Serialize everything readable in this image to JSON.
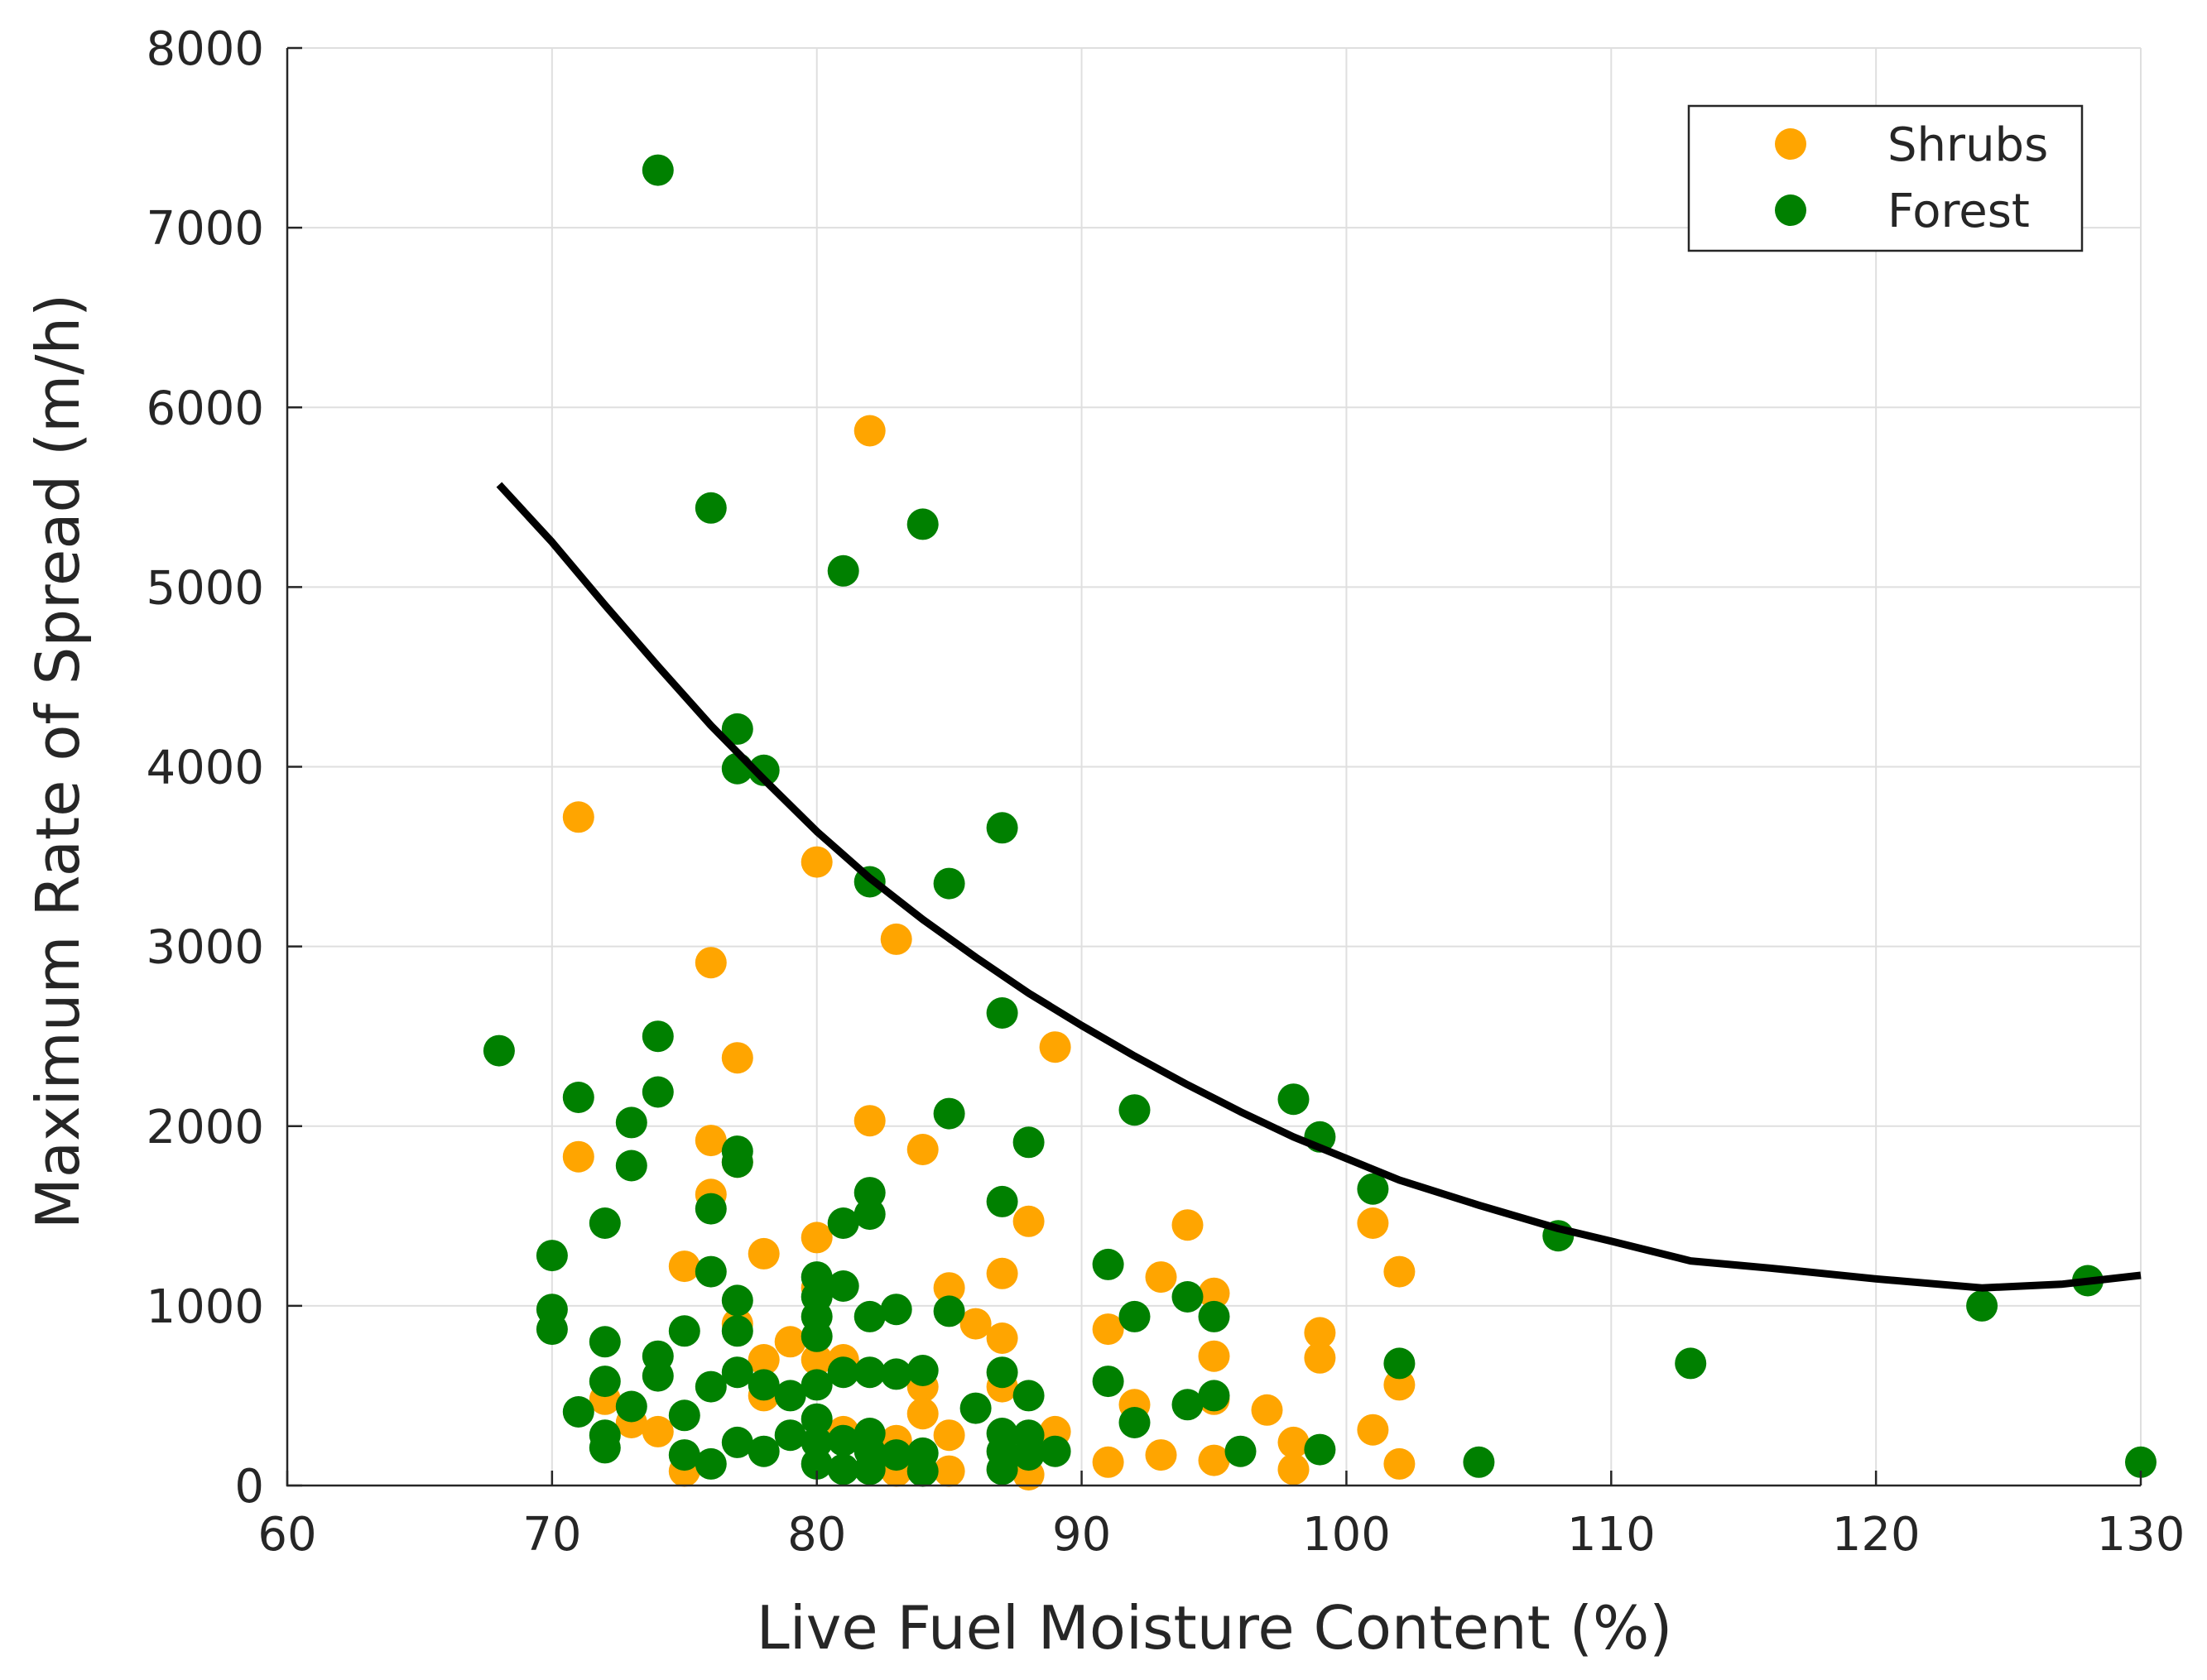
{
  "chart_data": {
    "type": "scatter",
    "title": "",
    "xlabel": "Live Fuel Moisture Content (%)",
    "ylabel": "Maximum Rate of Spread (m/h)",
    "xlim": [
      60,
      130
    ],
    "ylim": [
      0,
      8000
    ],
    "xticks": [
      60,
      70,
      80,
      90,
      100,
      110,
      120,
      130
    ],
    "yticks": [
      0,
      1000,
      2000,
      3000,
      4000,
      5000,
      6000,
      7000,
      8000
    ],
    "xtick_labels": [
      "60",
      "70",
      "80",
      "90",
      "100",
      "110",
      "120",
      "130"
    ],
    "ytick_labels": [
      "0",
      "1000",
      "2000",
      "3000",
      "4000",
      "5000",
      "6000",
      "7000",
      "8000"
    ],
    "grid": true,
    "legend_position": "top-right",
    "series": [
      {
        "name": "Shrubs",
        "color": "#FFA500",
        "points": [
          [
            71,
            3720
          ],
          [
            71,
            1830
          ],
          [
            72,
            480
          ],
          [
            73,
            350
          ],
          [
            74,
            300
          ],
          [
            75,
            1220
          ],
          [
            75,
            80
          ],
          [
            76,
            2910
          ],
          [
            76,
            1920
          ],
          [
            76,
            1620
          ],
          [
            77,
            2380
          ],
          [
            77,
            1800
          ],
          [
            77,
            900
          ],
          [
            78,
            1290
          ],
          [
            78,
            700
          ],
          [
            78,
            500
          ],
          [
            79,
            800
          ],
          [
            80,
            3470
          ],
          [
            80,
            1380
          ],
          [
            80,
            1100
          ],
          [
            80,
            700
          ],
          [
            81,
            700
          ],
          [
            81,
            300
          ],
          [
            82,
            5870
          ],
          [
            82,
            2030
          ],
          [
            82,
            200
          ],
          [
            83,
            3040
          ],
          [
            83,
            250
          ],
          [
            83,
            80
          ],
          [
            84,
            1870
          ],
          [
            84,
            550
          ],
          [
            84,
            400
          ],
          [
            85,
            1100
          ],
          [
            85,
            280
          ],
          [
            85,
            80
          ],
          [
            86,
            900
          ],
          [
            87,
            1180
          ],
          [
            87,
            820
          ],
          [
            87,
            550
          ],
          [
            88,
            1470
          ],
          [
            88,
            60
          ],
          [
            89,
            2440
          ],
          [
            89,
            300
          ],
          [
            91,
            870
          ],
          [
            91,
            130
          ],
          [
            92,
            450
          ],
          [
            93,
            1160
          ],
          [
            93,
            170
          ],
          [
            94,
            1450
          ],
          [
            95,
            1070
          ],
          [
            95,
            720
          ],
          [
            95,
            480
          ],
          [
            95,
            140
          ],
          [
            97,
            420
          ],
          [
            98,
            240
          ],
          [
            98,
            90
          ],
          [
            99,
            850
          ],
          [
            99,
            710
          ],
          [
            101,
            1460
          ],
          [
            101,
            310
          ],
          [
            102,
            1190
          ],
          [
            102,
            560
          ],
          [
            102,
            120
          ]
        ]
      },
      {
        "name": "Forest",
        "color": "#008000",
        "points": [
          [
            68,
            2420
          ],
          [
            70,
            1280
          ],
          [
            70,
            980
          ],
          [
            70,
            870
          ],
          [
            71,
            2160
          ],
          [
            71,
            410
          ],
          [
            72,
            1460
          ],
          [
            72,
            800
          ],
          [
            72,
            580
          ],
          [
            72,
            280
          ],
          [
            72,
            210
          ],
          [
            73,
            2020
          ],
          [
            73,
            1780
          ],
          [
            73,
            440
          ],
          [
            74,
            7320
          ],
          [
            74,
            2500
          ],
          [
            74,
            2190
          ],
          [
            74,
            720
          ],
          [
            74,
            610
          ],
          [
            75,
            860
          ],
          [
            75,
            390
          ],
          [
            75,
            170
          ],
          [
            76,
            5440
          ],
          [
            76,
            1540
          ],
          [
            76,
            1190
          ],
          [
            76,
            550
          ],
          [
            76,
            120
          ],
          [
            77,
            4210
          ],
          [
            77,
            3990
          ],
          [
            77,
            1860
          ],
          [
            77,
            1800
          ],
          [
            77,
            1030
          ],
          [
            77,
            860
          ],
          [
            77,
            630
          ],
          [
            77,
            240
          ],
          [
            78,
            3980
          ],
          [
            78,
            560
          ],
          [
            78,
            190
          ],
          [
            79,
            500
          ],
          [
            79,
            280
          ],
          [
            80,
            1160
          ],
          [
            80,
            1050
          ],
          [
            80,
            940
          ],
          [
            80,
            830
          ],
          [
            80,
            560
          ],
          [
            80,
            370
          ],
          [
            80,
            240
          ],
          [
            80,
            120
          ],
          [
            81,
            5090
          ],
          [
            81,
            1460
          ],
          [
            81,
            1110
          ],
          [
            81,
            630
          ],
          [
            81,
            250
          ],
          [
            81,
            90
          ],
          [
            82,
            3360
          ],
          [
            82,
            1630
          ],
          [
            82,
            1510
          ],
          [
            82,
            940
          ],
          [
            82,
            630
          ],
          [
            82,
            290
          ],
          [
            82,
            190
          ],
          [
            82,
            90
          ],
          [
            83,
            980
          ],
          [
            83,
            620
          ],
          [
            83,
            170
          ],
          [
            84,
            5350
          ],
          [
            84,
            640
          ],
          [
            84,
            180
          ],
          [
            84,
            80
          ],
          [
            85,
            3350
          ],
          [
            85,
            2070
          ],
          [
            85,
            970
          ],
          [
            86,
            430
          ],
          [
            87,
            3660
          ],
          [
            87,
            2630
          ],
          [
            87,
            1580
          ],
          [
            87,
            630
          ],
          [
            87,
            290
          ],
          [
            87,
            190
          ],
          [
            87,
            90
          ],
          [
            88,
            1910
          ],
          [
            88,
            500
          ],
          [
            88,
            280
          ],
          [
            88,
            170
          ],
          [
            89,
            190
          ],
          [
            91,
            1230
          ],
          [
            91,
            580
          ],
          [
            92,
            2090
          ],
          [
            92,
            940
          ],
          [
            92,
            350
          ],
          [
            94,
            1050
          ],
          [
            94,
            450
          ],
          [
            95,
            940
          ],
          [
            95,
            500
          ],
          [
            96,
            190
          ],
          [
            98,
            2150
          ],
          [
            99,
            1940
          ],
          [
            99,
            200
          ],
          [
            101,
            1650
          ],
          [
            102,
            680
          ],
          [
            105,
            130
          ],
          [
            108,
            1390
          ],
          [
            113,
            680
          ],
          [
            124,
            1000
          ],
          [
            128,
            1140
          ],
          [
            130,
            130
          ]
        ]
      }
    ],
    "fit_line": {
      "color": "#000000",
      "points": [
        [
          68,
          5570
        ],
        [
          70,
          5250
        ],
        [
          72,
          4900
        ],
        [
          74,
          4560
        ],
        [
          76,
          4230
        ],
        [
          78,
          3930
        ],
        [
          80,
          3640
        ],
        [
          82,
          3380
        ],
        [
          84,
          3150
        ],
        [
          86,
          2940
        ],
        [
          88,
          2740
        ],
        [
          90,
          2560
        ],
        [
          92,
          2390
        ],
        [
          94,
          2230
        ],
        [
          96,
          2080
        ],
        [
          98,
          1940
        ],
        [
          100,
          1820
        ],
        [
          102,
          1700
        ],
        [
          105,
          1560
        ],
        [
          108,
          1430
        ],
        [
          110,
          1360
        ],
        [
          113,
          1250
        ],
        [
          116,
          1210
        ],
        [
          120,
          1150
        ],
        [
          124,
          1100
        ],
        [
          127,
          1120
        ],
        [
          130,
          1170
        ]
      ]
    }
  }
}
